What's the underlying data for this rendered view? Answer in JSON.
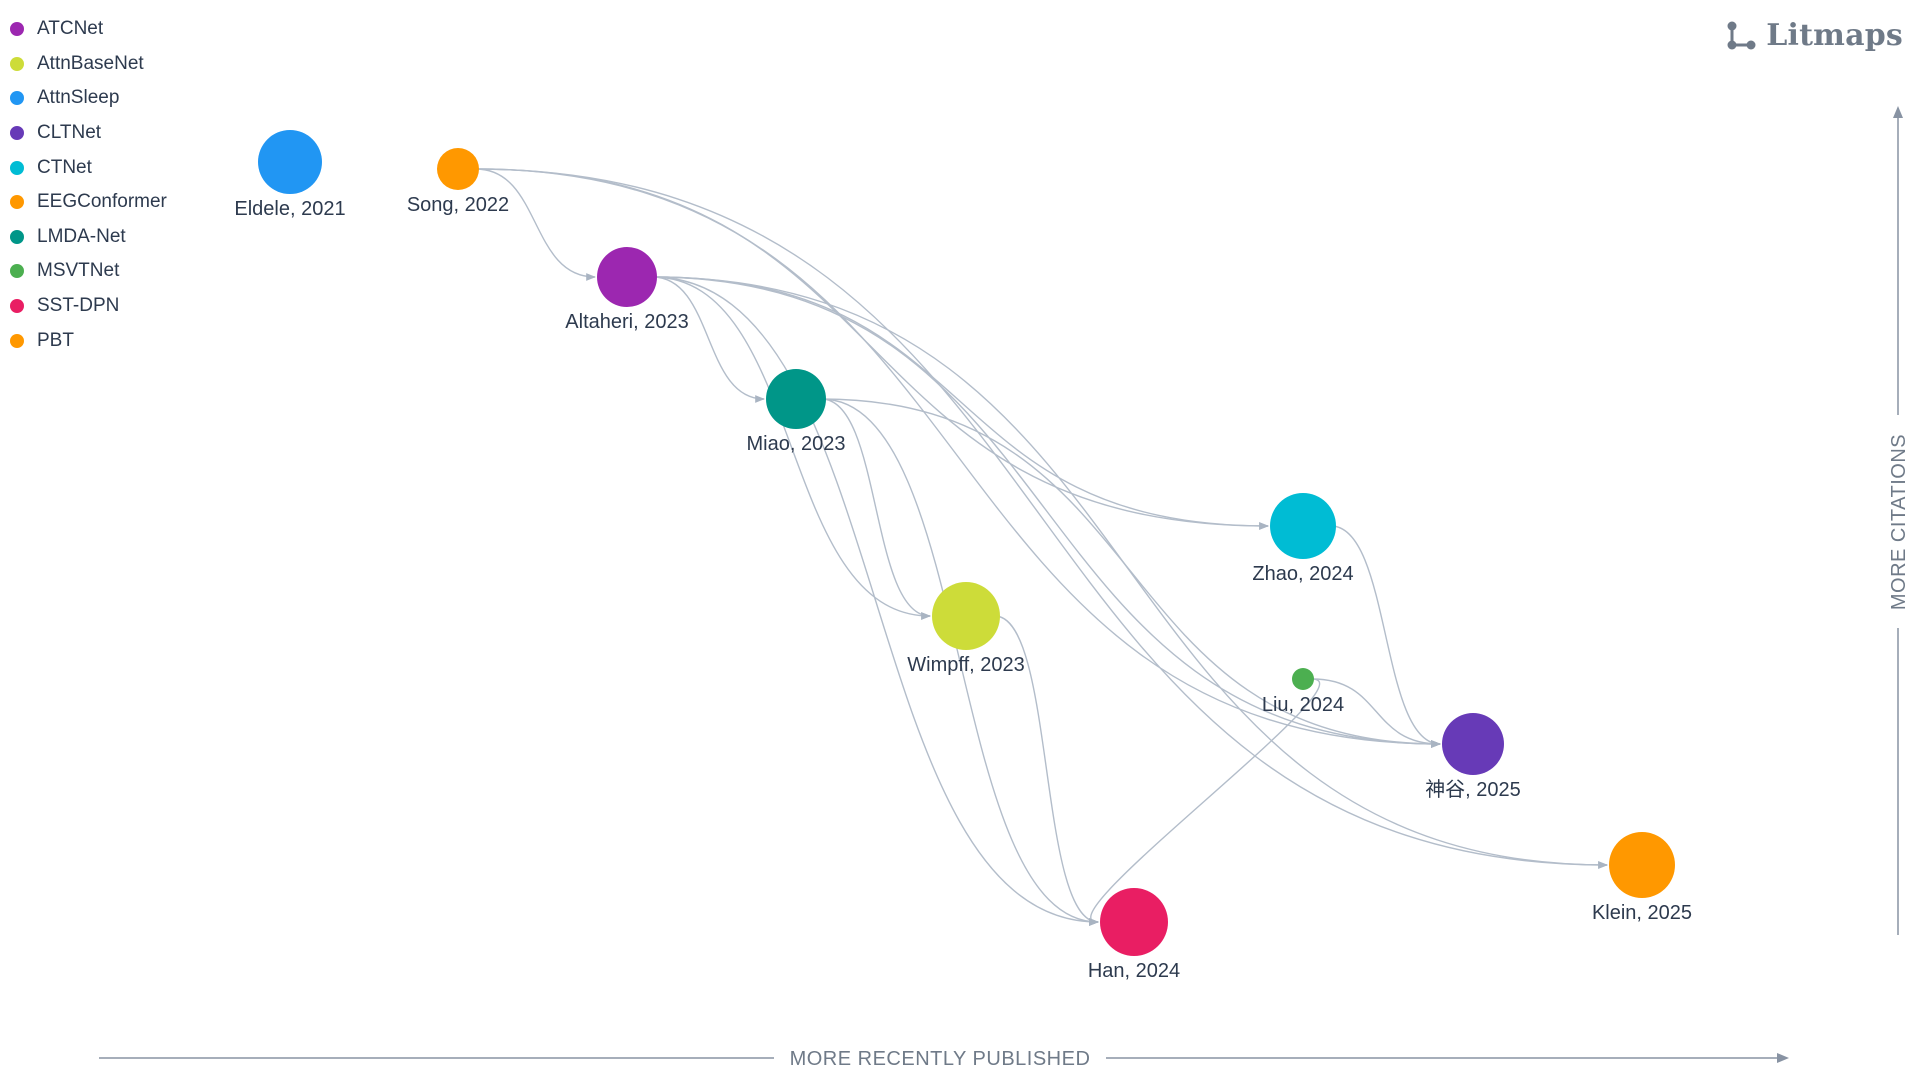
{
  "brand": {
    "name": "Litmaps",
    "logo_icon": "litmaps-network-icon"
  },
  "legend": [
    {
      "label": "ATCNet",
      "color": "#9c27b0"
    },
    {
      "label": "AttnBaseNet",
      "color": "#cddc39"
    },
    {
      "label": "AttnSleep",
      "color": "#2196f3"
    },
    {
      "label": "CLTNet",
      "color": "#673ab7"
    },
    {
      "label": "CTNet",
      "color": "#00bcd4"
    },
    {
      "label": "EEGConformer",
      "color": "#ff9800"
    },
    {
      "label": "LMDA-Net",
      "color": "#009688"
    },
    {
      "label": "MSVTNet",
      "color": "#4caf50"
    },
    {
      "label": "SST-DPN",
      "color": "#e91e63"
    },
    {
      "label": "PBT",
      "color": "#ff9800"
    }
  ],
  "axes": {
    "x_label": "MORE RECENTLY PUBLISHED",
    "y_label": "MORE CITATIONS"
  },
  "papers": [
    {
      "id": "eldele",
      "label": "Eldele, 2021",
      "color": "#2196f3"
    },
    {
      "id": "song",
      "label": "Song, 2022",
      "color": "#ff9800"
    },
    {
      "id": "altaheri",
      "label": "Altaheri, 2023",
      "color": "#9c27b0"
    },
    {
      "id": "miao",
      "label": "Miao, 2023",
      "color": "#009688"
    },
    {
      "id": "wimpff",
      "label": "Wimpff, 2023",
      "color": "#cddc39"
    },
    {
      "id": "zhao",
      "label": "Zhao, 2024",
      "color": "#00bcd4"
    },
    {
      "id": "liu",
      "label": "Liu, 2024",
      "color": "#4caf50"
    },
    {
      "id": "kamiya",
      "label": "神谷, 2025",
      "color": "#673ab7"
    },
    {
      "id": "han",
      "label": "Han, 2024",
      "color": "#e91e63"
    },
    {
      "id": "klein",
      "label": "Klein, 2025",
      "color": "#ff9800"
    }
  ],
  "citations": [
    [
      "song",
      "altaheri"
    ],
    [
      "song",
      "zhao"
    ],
    [
      "song",
      "kamiya"
    ],
    [
      "song",
      "klein"
    ],
    [
      "altaheri",
      "miao"
    ],
    [
      "altaheri",
      "wimpff"
    ],
    [
      "altaheri",
      "zhao"
    ],
    [
      "altaheri",
      "kamiya"
    ],
    [
      "altaheri",
      "han"
    ],
    [
      "altaheri",
      "klein"
    ],
    [
      "miao",
      "wimpff"
    ],
    [
      "miao",
      "han"
    ],
    [
      "miao",
      "kamiya"
    ],
    [
      "wimpff",
      "han"
    ],
    [
      "zhao",
      "kamiya"
    ],
    [
      "liu",
      "kamiya"
    ],
    [
      "liu",
      "han"
    ]
  ]
}
